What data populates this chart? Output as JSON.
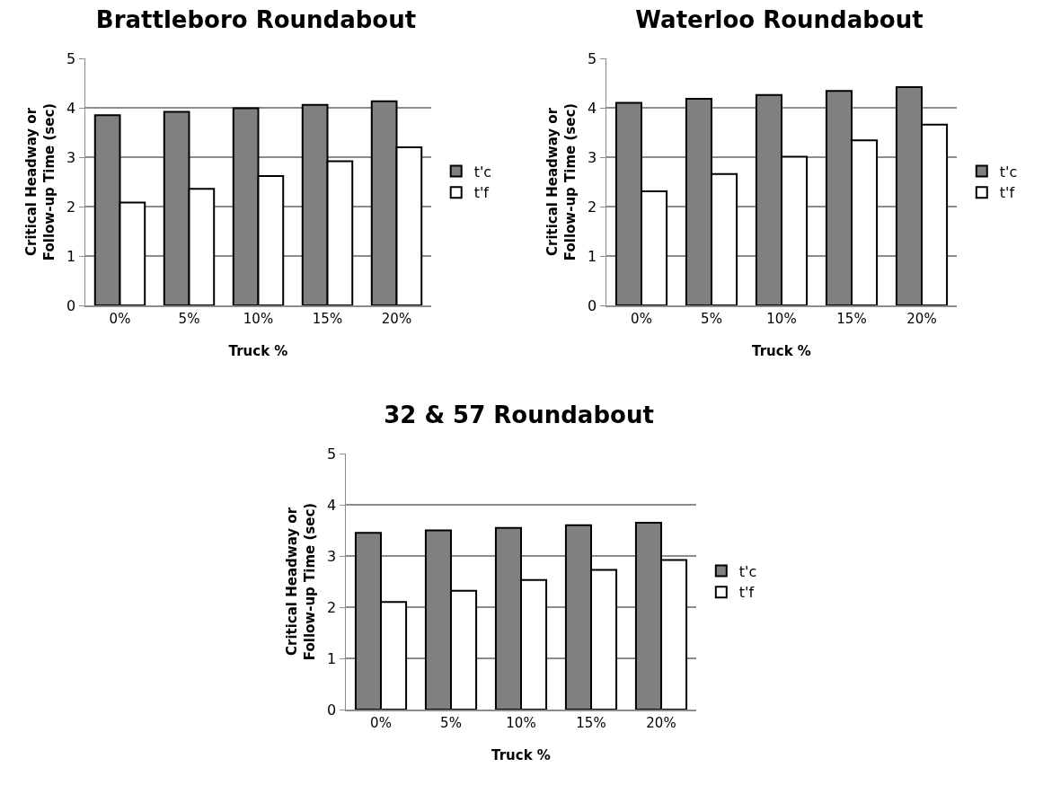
{
  "chart_data": [
    {
      "type": "bar",
      "title": "Brattleboro Roundabout",
      "xlabel": "Truck %",
      "ylabel": "Critical Headway or\nFollow-up Time (sec)",
      "categories": [
        "0%",
        "5%",
        "10%",
        "15%",
        "20%"
      ],
      "series": [
        {
          "name": "t'c",
          "color": "#808080",
          "values": [
            3.85,
            3.92,
            3.99,
            4.06,
            4.13
          ]
        },
        {
          "name": "t'f",
          "color": "#ffffff",
          "values": [
            2.08,
            2.36,
            2.62,
            2.92,
            3.2
          ]
        }
      ],
      "ylim": [
        0,
        5
      ],
      "yticks": [
        0,
        1,
        2,
        3,
        4,
        5
      ],
      "grid": "y",
      "legend": "right"
    },
    {
      "type": "bar",
      "title": "Waterloo Roundabout",
      "xlabel": "Truck %",
      "ylabel": "Critical Headway or\nFollow-up Time (sec)",
      "categories": [
        "0%",
        "5%",
        "10%",
        "15%",
        "20%"
      ],
      "series": [
        {
          "name": "t'c",
          "color": "#808080",
          "values": [
            4.1,
            4.18,
            4.26,
            4.34,
            4.42
          ]
        },
        {
          "name": "t'f",
          "color": "#ffffff",
          "values": [
            2.31,
            2.66,
            3.01,
            3.34,
            3.66
          ]
        }
      ],
      "ylim": [
        0,
        5
      ],
      "yticks": [
        0,
        1,
        2,
        3,
        4,
        5
      ],
      "grid": "y",
      "legend": "right"
    },
    {
      "type": "bar",
      "title": "32 & 57 Roundabout",
      "xlabel": "Truck %",
      "ylabel": "Critical Headway or\nFollow-up Time (sec)",
      "categories": [
        "0%",
        "5%",
        "10%",
        "15%",
        "20%"
      ],
      "series": [
        {
          "name": "t'c",
          "color": "#808080",
          "values": [
            3.45,
            3.5,
            3.55,
            3.6,
            3.65
          ]
        },
        {
          "name": "t'f",
          "color": "#ffffff",
          "values": [
            2.1,
            2.32,
            2.53,
            2.73,
            2.92
          ]
        }
      ],
      "ylim": [
        0,
        5
      ],
      "yticks": [
        0,
        1,
        2,
        3,
        4,
        5
      ],
      "grid": "y",
      "legend": "right"
    }
  ]
}
